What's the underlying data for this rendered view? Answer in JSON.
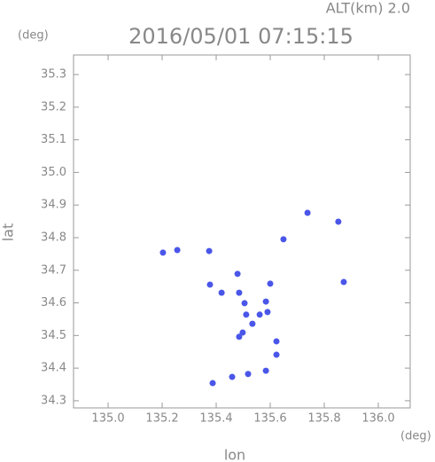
{
  "chart_data": {
    "type": "scatter",
    "title": "2016/05/01 07:15:15",
    "subtitle": "ALT(km) 2.0",
    "x_label": "lon",
    "y_label": "lat",
    "x_unit": "(deg)",
    "y_unit": "(deg)",
    "color": "#4a56e8",
    "x": [
      135.203,
      135.256,
      135.374,
      135.377,
      135.479,
      135.485,
      135.505,
      135.511,
      135.498,
      135.485,
      135.534,
      135.584,
      135.6,
      135.59,
      135.623,
      135.623,
      135.584,
      135.518,
      135.459,
      135.387,
      135.738,
      135.852,
      135.872,
      135.649,
      135.42,
      135.561
    ],
    "y": [
      34.754,
      34.762,
      34.759,
      34.656,
      34.689,
      34.631,
      34.599,
      34.564,
      34.509,
      34.496,
      34.536,
      34.604,
      34.659,
      34.572,
      34.482,
      34.441,
      34.392,
      34.382,
      34.373,
      34.354,
      34.876,
      34.849,
      34.664,
      34.795,
      34.631,
      34.564
    ],
    "xlim": [
      134.872,
      136.118
    ],
    "ylim": [
      34.278,
      35.36
    ],
    "xticks": [
      {
        "value": 135,
        "label": "135.0"
      },
      135.2,
      135.4,
      135.6,
      135.8,
      {
        "value": 136,
        "label": "136.0"
      }
    ],
    "yticks": [
      34.3,
      34.4,
      34.5,
      34.6,
      34.7,
      34.8,
      34.9,
      {
        "value": 35,
        "label": "35.0"
      },
      35.1,
      35.2,
      35.3
    ]
  }
}
